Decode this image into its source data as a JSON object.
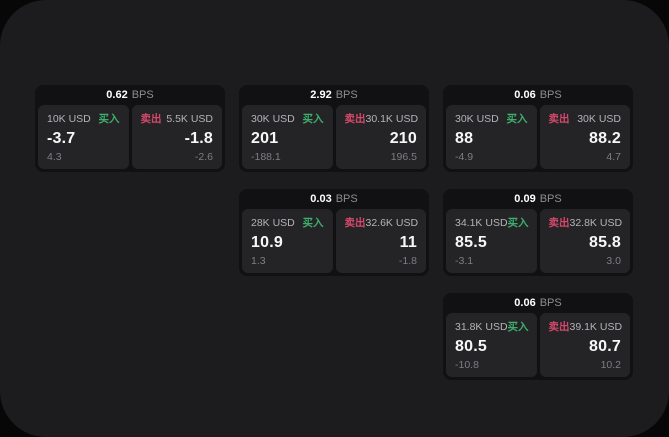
{
  "labels": {
    "bps_unit": "BPS",
    "buy": "买入",
    "sell": "卖出"
  },
  "colors": {
    "page_bg": "#070708",
    "panel_bg": "#1c1c1e",
    "card_bg": "#111113",
    "tile_bg": "#242427",
    "buy_accent": "#3fae6d",
    "sell_accent": "#d4496b"
  },
  "cards": [
    {
      "row": 1,
      "col": 1,
      "bps": "0.62",
      "buy": {
        "amount": "10K USD",
        "price": "-3.7",
        "delta": "4.3"
      },
      "sell": {
        "amount": "5.5K USD",
        "price": "-1.8",
        "delta": "-2.6"
      }
    },
    {
      "row": 1,
      "col": 2,
      "bps": "2.92",
      "buy": {
        "amount": "30K USD",
        "price": "201",
        "delta": "-188.1"
      },
      "sell": {
        "amount": "30.1K USD",
        "price": "210",
        "delta": "196.5"
      }
    },
    {
      "row": 1,
      "col": 3,
      "bps": "0.06",
      "buy": {
        "amount": "30K USD",
        "price": "88",
        "delta": "-4.9"
      },
      "sell": {
        "amount": "30K USD",
        "price": "88.2",
        "delta": "4.7"
      }
    },
    {
      "row": 2,
      "col": 2,
      "bps": "0.03",
      "buy": {
        "amount": "28K USD",
        "price": "10.9",
        "delta": "1.3"
      },
      "sell": {
        "amount": "32.6K USD",
        "price": "11",
        "delta": "-1.8"
      }
    },
    {
      "row": 2,
      "col": 3,
      "bps": "0.09",
      "buy": {
        "amount": "34.1K USD",
        "price": "85.5",
        "delta": "-3.1"
      },
      "sell": {
        "amount": "32.8K USD",
        "price": "85.8",
        "delta": "3.0"
      }
    },
    {
      "row": 3,
      "col": 3,
      "bps": "0.06",
      "buy": {
        "amount": "31.8K USD",
        "price": "80.5",
        "delta": "-10.8"
      },
      "sell": {
        "amount": "39.1K USD",
        "price": "80.7",
        "delta": "10.2"
      }
    }
  ]
}
